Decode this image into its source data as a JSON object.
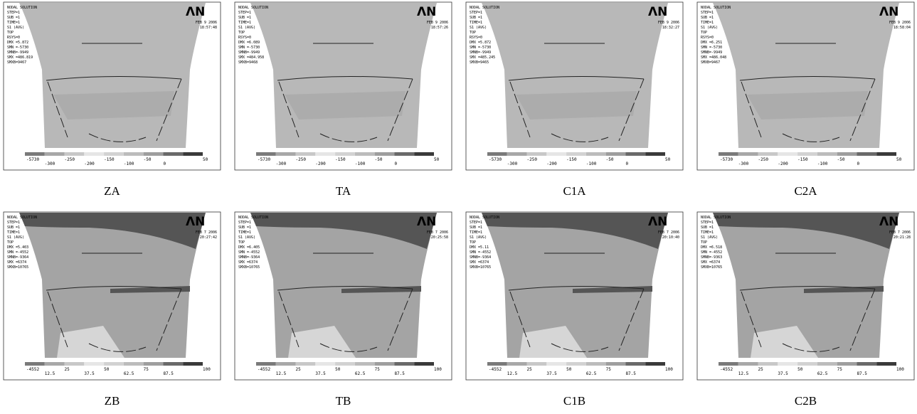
{
  "logo": "ΛN",
  "panels": [
    {
      "caption": "ZA",
      "info": [
        "NODAL SOLUTION",
        "STEP=1",
        "SUB =1",
        "TIME=1",
        "S1 (AVG)",
        "TOP",
        "RSYS=0",
        "DMX =5.872",
        "SMN =-5730",
        "SMNB=-9949",
        "SMX =486.819",
        "SMXB=9467"
      ],
      "date": "FEB 9 2006",
      "time": "18:57:48",
      "legend": [
        "-5730",
        "-300",
        "-250",
        "-200",
        "-150",
        "-100",
        "-50",
        "0",
        "50"
      ]
    },
    {
      "caption": "TA",
      "info": [
        "NODAL SOLUTION",
        "STEP=1",
        "SUB =1",
        "TIME=1",
        "S1 (AVG)",
        "TOP",
        "RSYS=0",
        "DMX =6.089",
        "SMN =-5730",
        "SMNB=-9949",
        "SMX =484.958",
        "SMXB=9468"
      ],
      "date": "FEB 9 2006",
      "time": "18:57:26",
      "legend": [
        "-5730",
        "-300",
        "-250",
        "-200",
        "-150",
        "-100",
        "-50",
        "0",
        "50"
      ]
    },
    {
      "caption": "C1A",
      "info": [
        "NODAL SOLUTION",
        "STEP=1",
        "SUB =1",
        "TIME=1",
        "S1 (AVG)",
        "TOP",
        "RSYS=0",
        "DMX =5.872",
        "SMN =-5730",
        "SMNB=-9949",
        "SMX =485.245",
        "SMXB=9465"
      ],
      "date": "FEB 9 2006",
      "time": "18:32:27",
      "legend": [
        "-5730",
        "-300",
        "-250",
        "-200",
        "-150",
        "-100",
        "-50",
        "0",
        "50"
      ]
    },
    {
      "caption": "C2A",
      "info": [
        "NODAL SOLUTION",
        "STEP=1",
        "SUB =1",
        "TIME=1",
        "S1 (AVG)",
        "TOP",
        "RSYS=0",
        "DMX =6.251",
        "SMN =-5730",
        "SMNB=-9949",
        "SMX =486.048",
        "SMXB=9467"
      ],
      "date": "FEB 9 2006",
      "time": "18:58:04",
      "legend": [
        "-5730",
        "-300",
        "-250",
        "-200",
        "-150",
        "-100",
        "-50",
        "0",
        "50"
      ]
    },
    {
      "caption": "ZB",
      "info": [
        "NODAL SOLUTION",
        "STEP=1",
        "SUB =1",
        "TIME=1",
        "S1 (AVG)",
        "TOP",
        "DMX =5.403",
        "SMN =-4552",
        "SMNB=-9364",
        "SMX =6374",
        "SMXB=10765"
      ],
      "date": "FEB 7 2006",
      "time": "20:27:42",
      "legend": [
        "-4552",
        "12.5",
        "25",
        "37.5",
        "50",
        "62.5",
        "75",
        "87.5",
        "100"
      ]
    },
    {
      "caption": "TB",
      "info": [
        "NODAL SOLUTION",
        "STEP=1",
        "SUB =1",
        "TIME=1",
        "S1 (AVG)",
        "TOP",
        "DMX =6.405",
        "SMN =-4552",
        "SMNB=-9364",
        "SMX =6374",
        "SMXB=10765"
      ],
      "date": "FEB 7 2006",
      "time": "20:25:58",
      "legend": [
        "-4552",
        "12.5",
        "25",
        "37.5",
        "50",
        "62.5",
        "75",
        "87.5",
        "100"
      ]
    },
    {
      "caption": "C1B",
      "info": [
        "NODAL SOLUTION",
        "STEP=1",
        "SUB =1",
        "TIME=1",
        "S1 (AVG)",
        "TOP",
        "DMX =5.11",
        "SMN =-4552",
        "SMNB=-9364",
        "SMX =6374",
        "SMXB=10765"
      ],
      "date": "FEB 7 2006",
      "time": "20:10:40",
      "legend": [
        "-4552",
        "12.5",
        "25",
        "37.5",
        "50",
        "62.5",
        "75",
        "87.5",
        "100"
      ]
    },
    {
      "caption": "C2B",
      "info": [
        "NODAL SOLUTION",
        "STEP=1",
        "SUB =1",
        "TIME=1",
        "S1 (AVG)",
        "TOP",
        "DMX =6.518",
        "SMN =-4552",
        "SMNB=-9363",
        "SMX =6374",
        "SMXB=10765"
      ],
      "date": "FEB 7 2006",
      "time": "20:21:28",
      "legend": [
        "-4552",
        "12.5",
        "25",
        "37.5",
        "50",
        "62.5",
        "75",
        "87.5",
        "100"
      ]
    }
  ]
}
